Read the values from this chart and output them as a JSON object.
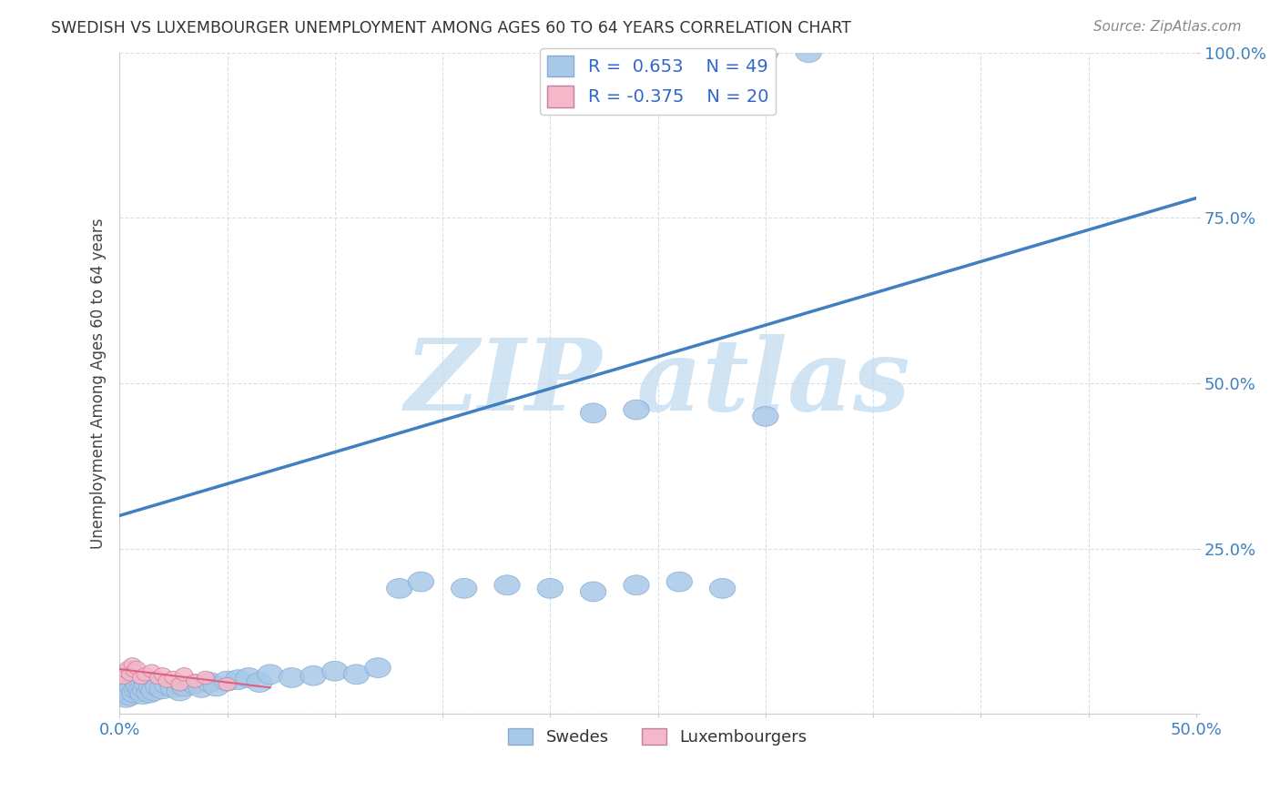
{
  "title": "SWEDISH VS LUXEMBOURGER UNEMPLOYMENT AMONG AGES 60 TO 64 YEARS CORRELATION CHART",
  "source": "Source: ZipAtlas.com",
  "ylabel": "Unemployment Among Ages 60 to 64 years",
  "xlim": [
    0.0,
    0.5
  ],
  "ylim": [
    0.0,
    1.0
  ],
  "xtick_positions": [
    0.0,
    0.05,
    0.1,
    0.15,
    0.2,
    0.25,
    0.3,
    0.35,
    0.4,
    0.45,
    0.5
  ],
  "xtick_labels": [
    "0.0%",
    "",
    "",
    "",
    "",
    "",
    "",
    "",
    "",
    "",
    "50.0%"
  ],
  "ytick_positions": [
    0.0,
    0.25,
    0.5,
    0.75,
    1.0
  ],
  "ytick_labels": [
    "",
    "25.0%",
    "50.0%",
    "75.0%",
    "100.0%"
  ],
  "swedish_color": "#a8c8e8",
  "luxembourger_color": "#f4b8c8",
  "regression_blue_color": "#4080c0",
  "regression_pink_color": "#e06080",
  "legend_R_blue": "0.653",
  "legend_N_blue": "49",
  "legend_R_pink": "-0.375",
  "legend_N_pink": "20",
  "swedish_x": [
    0.002,
    0.003,
    0.004,
    0.005,
    0.006,
    0.007,
    0.008,
    0.009,
    0.01,
    0.011,
    0.012,
    0.013,
    0.014,
    0.015,
    0.016,
    0.018,
    0.02,
    0.022,
    0.025,
    0.028,
    0.03,
    0.035,
    0.038,
    0.042,
    0.045,
    0.05,
    0.055,
    0.06,
    0.065,
    0.07,
    0.08,
    0.09,
    0.1,
    0.11,
    0.12,
    0.13,
    0.14,
    0.16,
    0.18,
    0.2,
    0.22,
    0.24,
    0.26,
    0.28,
    0.3,
    0.22,
    0.24,
    0.3,
    0.32
  ],
  "swedish_y": [
    0.03,
    0.025,
    0.035,
    0.028,
    0.04,
    0.032,
    0.038,
    0.042,
    0.035,
    0.03,
    0.038,
    0.045,
    0.032,
    0.04,
    0.035,
    0.042,
    0.038,
    0.045,
    0.04,
    0.035,
    0.042,
    0.045,
    0.04,
    0.048,
    0.042,
    0.05,
    0.052,
    0.055,
    0.048,
    0.06,
    0.055,
    0.058,
    0.065,
    0.06,
    0.07,
    0.19,
    0.2,
    0.19,
    0.195,
    0.19,
    0.185,
    0.195,
    0.2,
    0.19,
    0.45,
    0.455,
    0.46,
    1.0,
    1.0
  ],
  "luxembourger_x": [
    0.001,
    0.002,
    0.003,
    0.004,
    0.005,
    0.006,
    0.007,
    0.008,
    0.01,
    0.012,
    0.015,
    0.018,
    0.02,
    0.022,
    0.025,
    0.028,
    0.03,
    0.035,
    0.04,
    0.05
  ],
  "luxembourger_y": [
    0.06,
    0.055,
    0.065,
    0.07,
    0.06,
    0.075,
    0.065,
    0.07,
    0.055,
    0.06,
    0.065,
    0.055,
    0.06,
    0.05,
    0.055,
    0.045,
    0.06,
    0.05,
    0.055,
    0.045
  ],
  "blue_line_x": [
    0.0,
    0.5
  ],
  "blue_line_y": [
    0.3,
    0.78
  ],
  "pink_line_x": [
    0.0,
    0.07
  ],
  "pink_line_y": [
    0.068,
    0.04
  ],
  "watermark_text": "ZIPatlas",
  "watermark_color": "#d0e4f4",
  "grid_color": "#d0dde8",
  "tick_label_color": "#4080c0"
}
